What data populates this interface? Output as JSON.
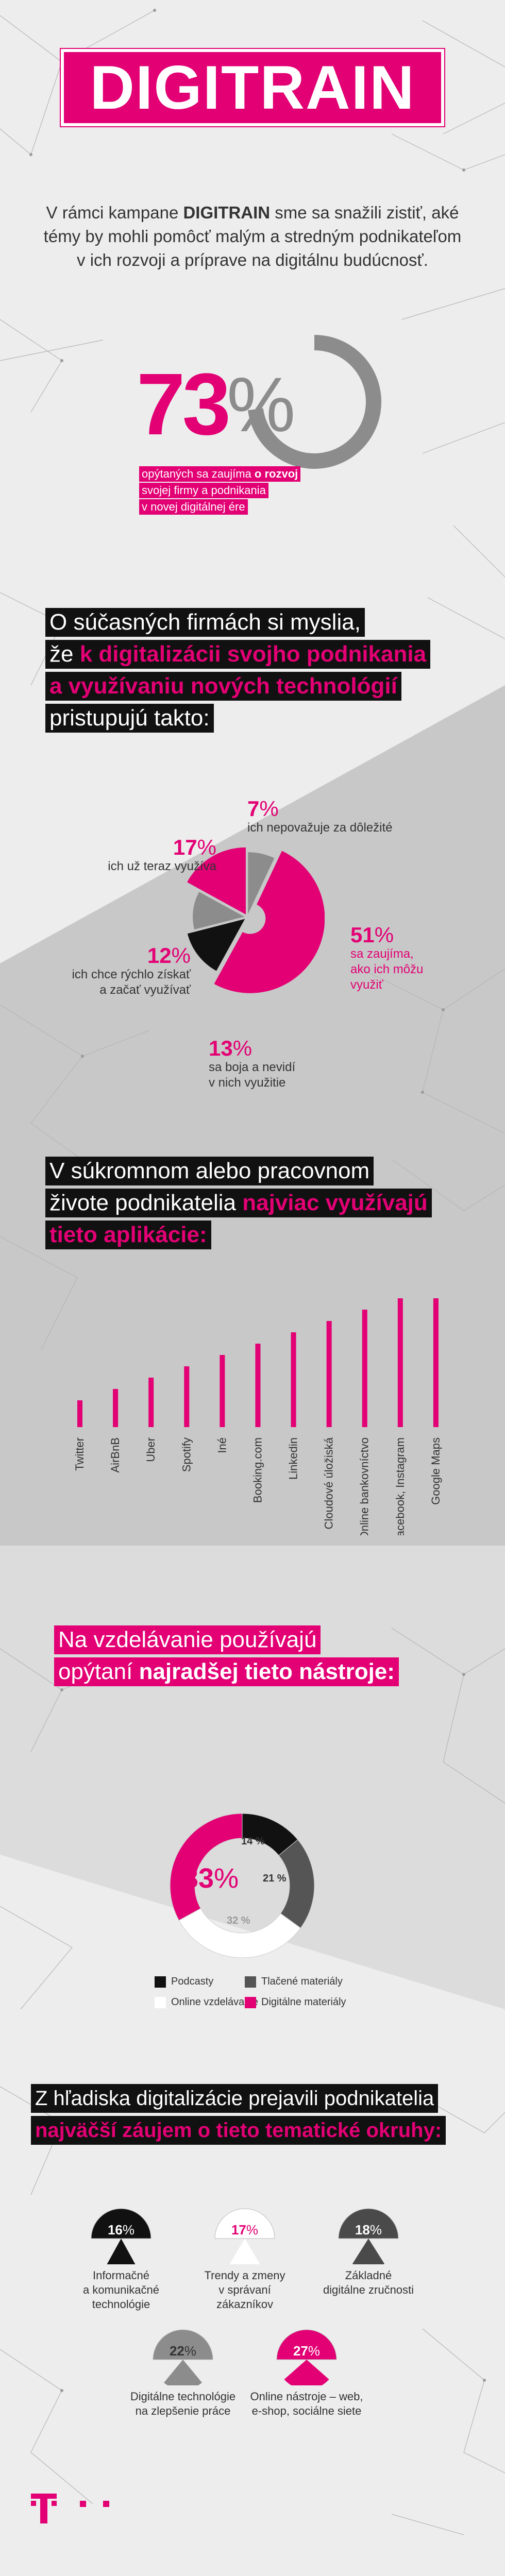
{
  "title": "DIGITRAIN",
  "intro": {
    "before": "V rámci kampane ",
    "bold": "DIGITRAIN",
    "after": " sme sa snažili zistiť, aké témy by mohli pomôcť malým a stredným podnikateľom v ich rozvoji a príprave na digitálnu budúcnosť."
  },
  "headline_stat": {
    "number": "73",
    "percent_sign": "%",
    "value": 73,
    "caption": {
      "line1_a": "opýtaných sa zaujíma ",
      "line1_b": "o rozvoj",
      "line2": "svojej firmy a podnikania",
      "line3": "v novej digitálnej ére"
    }
  },
  "section1": {
    "line1": "O súčasných firmách si myslia,",
    "line2_a": "že ",
    "line2_b": "k digitalizácii svojho podnikania",
    "line3": "a využívaniu nových technológií",
    "line4": "pristupujú takto:"
  },
  "pie": {
    "colors": {
      "magenta": "#e20074",
      "gray": "#8c8c8c",
      "black": "#111111"
    },
    "slices": [
      {
        "num": "7",
        "pct": "%",
        "value": 7,
        "label": "ich nepovažuje za dôležité",
        "color": "#8c8c8c"
      },
      {
        "num": "51",
        "pct": "%",
        "value": 51,
        "label": "sa zaujíma, ako ich môžu využiť",
        "label_l1": "sa zaujíma,",
        "label_l2": "ako ich môžu",
        "label_l3": "využiť",
        "color": "#e20074"
      },
      {
        "num": "13",
        "pct": "%",
        "value": 13,
        "label_l1": "sa boja a nevidí",
        "label_l2": "v nich využitie",
        "color": "#111111"
      },
      {
        "num": "12",
        "pct": "%",
        "value": 12,
        "label_l1": "ich chce rýchlo získať",
        "label_l2": "a začať využívať",
        "color": "#8c8c8c"
      },
      {
        "num": "17",
        "pct": "%",
        "value": 17,
        "label": "ich už teraz využíva",
        "color": "#e20074"
      }
    ]
  },
  "section2": {
    "line1": "V súkromnom alebo pracovnom",
    "line2_a": "živote podnikatelia ",
    "line2_b": "najviac využívajú",
    "line3": "tieto aplikácie:"
  },
  "chart_data": {
    "type": "bar",
    "categories": [
      "Twitter",
      "AirBnB",
      "Uber",
      "Spotify",
      "Iné",
      "Booking.com",
      "Linkedin",
      "Cloudové úložiská",
      "Online bankovníctvo",
      "Facebook, Instagram",
      "Google Maps"
    ],
    "values": [
      1,
      2,
      3,
      4,
      5,
      6,
      7,
      8,
      9,
      10,
      10
    ],
    "note": "relative bar heights, no axis printed"
  },
  "section3": {
    "line1": "Na vzdelávanie používajú",
    "line2_a": "opýtaní ",
    "line2_b": "najradšej tieto nástroje:"
  },
  "donut": {
    "segments": [
      {
        "label": "Podcasty",
        "value": 14,
        "text": "14 %",
        "color": "#111111"
      },
      {
        "label": "Tlačené materiály",
        "value": 21,
        "text": "21 %",
        "color": "#555555"
      },
      {
        "label": "Online vzdelávanie",
        "value": 32,
        "text": "32 %",
        "color": "#ffffff"
      },
      {
        "label": "Digitálne materiály",
        "value": 33,
        "text_num": "33",
        "text_pct": "%",
        "color": "#e20074"
      }
    ]
  },
  "section4": {
    "line1": "Z hľadiska digitalizácie prejavili podnikatelia",
    "line2": "najväčší záujem o tieto tematické okruhy:"
  },
  "topics": [
    {
      "num": "16",
      "pct": "%",
      "value": 16,
      "l1": "Informačné",
      "l2": "a komunikačné",
      "l3": "technológie",
      "color": "#111111",
      "text_color": "#ffffff"
    },
    {
      "num": "17",
      "pct": "%",
      "value": 17,
      "l1": "Trendy a zmeny",
      "l2": "v správaní",
      "l3": "zákazníkov",
      "color": "#ffffff",
      "text_color": "#e20074"
    },
    {
      "num": "18",
      "pct": "%",
      "value": 18,
      "l1": "Základné",
      "l2": "digitálne zručnosti",
      "l3": "",
      "color": "#4a4a4a",
      "text_color": "#ffffff"
    },
    {
      "num": "22",
      "pct": "%",
      "value": 22,
      "l1": "Digitálne technológie",
      "l2": "na zlepšenie práce",
      "l3": "",
      "color": "#8c8c8c",
      "text_color": "#333333"
    },
    {
      "num": "27",
      "pct": "%",
      "value": 27,
      "l1": "Online nástroje – web,",
      "l2": "e-shop, sociálne siete",
      "l3": "",
      "color": "#e20074",
      "text_color": "#ffffff"
    }
  ],
  "logo_icon": "telekom-t-logo"
}
